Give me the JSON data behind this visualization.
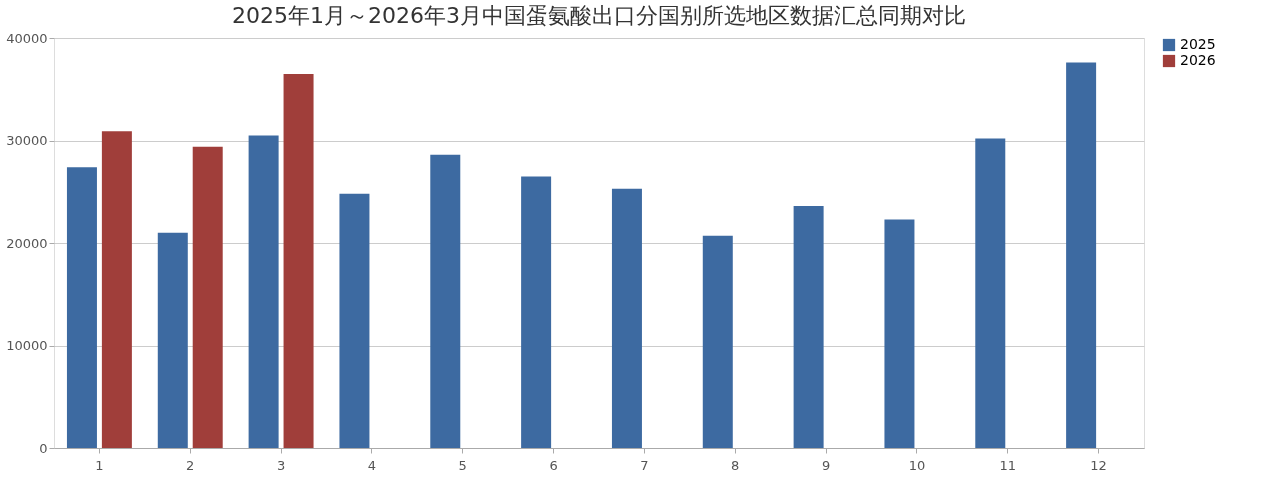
{
  "chart_data": {
    "type": "bar",
    "title": "2025年1月～2026年3月中国蛋氨酸出口分国别所选地区数据汇总同期对比",
    "categories": [
      "1",
      "2",
      "3",
      "4",
      "5",
      "6",
      "7",
      "8",
      "9",
      "10",
      "11",
      "12"
    ],
    "series": [
      {
        "name": "2025",
        "color": "#3d6aa1",
        "values": [
          27400,
          21000,
          30500,
          24800,
          28600,
          26500,
          25300,
          20700,
          23600,
          22300,
          30200,
          37600
        ]
      },
      {
        "name": "2026",
        "color": "#a03e3a",
        "values": [
          30900,
          29400,
          36500,
          null,
          null,
          null,
          null,
          null,
          null,
          null,
          null,
          null
        ]
      }
    ],
    "ylim": [
      0,
      40000
    ],
    "yticks": [
      0,
      10000,
      20000,
      30000,
      40000
    ],
    "grid": "y",
    "legend": "right"
  }
}
